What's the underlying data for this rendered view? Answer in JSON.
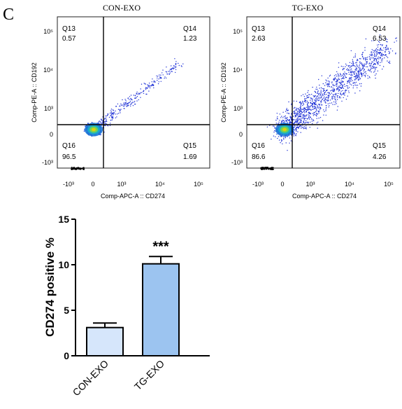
{
  "panel_label": "C",
  "chart_data": [
    {
      "type": "scatter",
      "title": "CON-EXO",
      "xlabel": "Comp-APC-A :: CD274",
      "ylabel": "Comp-PE-A :: CD192",
      "x_ticks": [
        "-10³",
        "0",
        "10³",
        "10⁴",
        "10⁵"
      ],
      "y_ticks": [
        "10⁵",
        "10⁴",
        "10³",
        "0",
        "-10³"
      ],
      "quadrants": [
        {
          "name": "Q13",
          "value": "0.57"
        },
        {
          "name": "Q14",
          "value": "1.23"
        },
        {
          "name": "Q15",
          "value": "1.69"
        },
        {
          "name": "Q16",
          "value": "96.5"
        }
      ]
    },
    {
      "type": "scatter",
      "title": "TG-EXO",
      "xlabel": "Comp-APC-A :: CD274",
      "ylabel": "Comp-PE-A :: CD192",
      "x_ticks": [
        "-10³",
        "0",
        "10³",
        "10⁴",
        "10⁵"
      ],
      "y_ticks": [
        "10⁵",
        "10⁴",
        "10³",
        "0",
        "-10³"
      ],
      "quadrants": [
        {
          "name": "Q13",
          "value": "2.63"
        },
        {
          "name": "Q14",
          "value": "6.53"
        },
        {
          "name": "Q15",
          "value": "4.26"
        },
        {
          "name": "Q16",
          "value": "86.6"
        }
      ]
    },
    {
      "type": "bar",
      "categories": [
        "CON-EXO",
        "TG-EXO"
      ],
      "values": [
        3.1,
        10.1
      ],
      "errors": [
        0.5,
        0.8
      ],
      "ylabel": "CD274 positive %",
      "ylim": [
        0,
        15
      ],
      "yticks": [
        "0",
        "5",
        "10",
        "15"
      ],
      "significance": "***",
      "colors": [
        "#d6e6fb",
        "#9cc4f0"
      ]
    }
  ]
}
